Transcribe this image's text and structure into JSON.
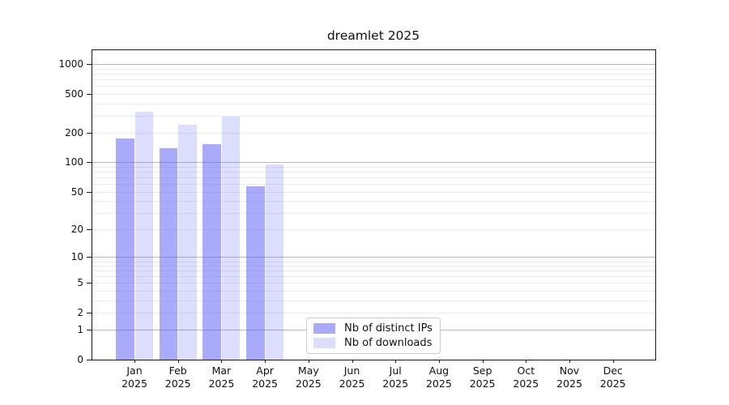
{
  "title": "dreamlet 2025",
  "chart_data": {
    "type": "bar",
    "title": "dreamlet 2025",
    "categories": [
      "Jan",
      "Feb",
      "Mar",
      "Apr",
      "May",
      "Jun",
      "Jul",
      "Aug",
      "Sep",
      "Oct",
      "Nov",
      "Dec"
    ],
    "x_tick_year": "2025",
    "series": [
      {
        "name": "Nb of distinct IPs",
        "color": "rgba(85,85,245,0.5)",
        "values": [
          175,
          140,
          155,
          57,
          0,
          0,
          0,
          0,
          0,
          0,
          0,
          0
        ]
      },
      {
        "name": "Nb of downloads",
        "color": "rgba(85,85,245,0.2)",
        "values": [
          330,
          245,
          295,
          95,
          0,
          0,
          0,
          0,
          0,
          0,
          0,
          0
        ]
      }
    ],
    "y_axis": {
      "scale": "log1p",
      "tick_labels": [
        "1000",
        "500",
        "200",
        "100",
        "50",
        "20",
        "10",
        "5",
        "2",
        "1",
        "0"
      ],
      "tick_values": [
        1000,
        500,
        200,
        100,
        50,
        20,
        10,
        5,
        2,
        1,
        0
      ],
      "ylim": [
        0,
        1400
      ]
    },
    "grid": "horizontal",
    "legend": {
      "position": "lower center",
      "entries": [
        "Nb of distinct IPs",
        "Nb of downloads"
      ]
    }
  },
  "colors": {
    "bar_distinct_ips": "rgba(85,85,245,0.5)",
    "bar_downloads": "rgba(85,85,245,0.2)",
    "grid_major": "#b9b9b9",
    "grid_minor": "#ececec",
    "axis": "#1a1a1a",
    "legend_border": "#cbcbcb"
  }
}
